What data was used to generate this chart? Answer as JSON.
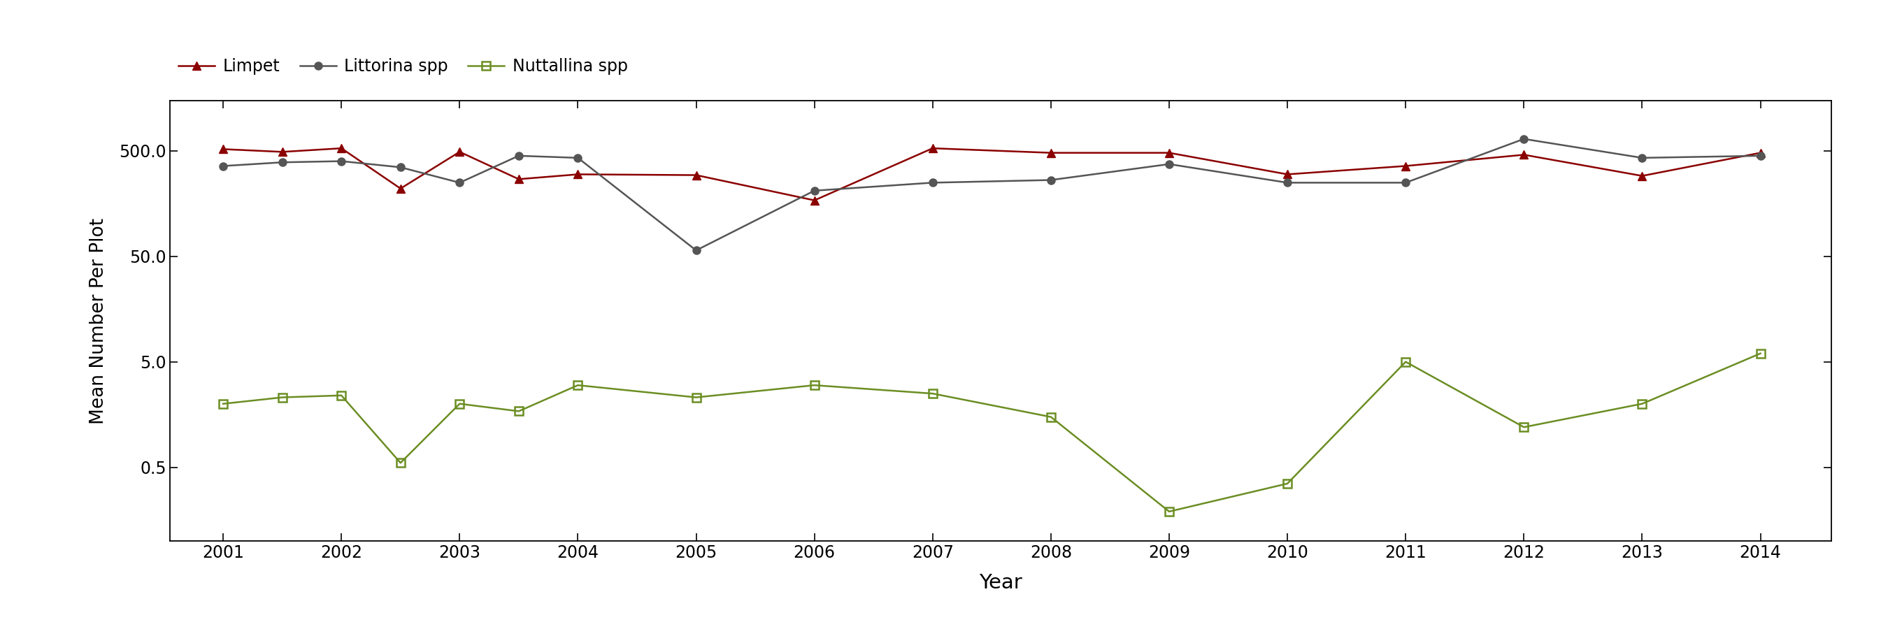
{
  "limpet_x": [
    2001,
    2001.5,
    2002,
    2002.5,
    2003,
    2003.5,
    2004,
    2005,
    2006,
    2007,
    2008,
    2009,
    2010,
    2011,
    2012,
    2013,
    2014
  ],
  "limpet_y": [
    520,
    490,
    530,
    220,
    490,
    270,
    300,
    295,
    170,
    530,
    480,
    480,
    300,
    360,
    460,
    290,
    480
  ],
  "littorina_x": [
    2001,
    2001.5,
    2002,
    2002.5,
    2003,
    2003.5,
    2004,
    2005,
    2006,
    2007,
    2008,
    2009,
    2010,
    2011,
    2012,
    2013,
    2014
  ],
  "littorina_y": [
    360,
    390,
    400,
    350,
    250,
    450,
    430,
    57,
    210,
    250,
    265,
    375,
    250,
    250,
    650,
    430,
    450
  ],
  "nuttallina_x": [
    2001,
    2001.5,
    2002,
    2002.5,
    2003,
    2003.5,
    2004,
    2005,
    2006,
    2007,
    2008,
    2009,
    2010,
    2011,
    2012,
    2013,
    2014
  ],
  "nuttallina_y": [
    2.0,
    2.3,
    2.4,
    0.55,
    2.0,
    1.7,
    3.0,
    2.3,
    3.0,
    2.5,
    1.5,
    0.19,
    0.35,
    5.0,
    1.2,
    2.0,
    6.0
  ],
  "limpet_color": "#8B0000",
  "littorina_color": "#555555",
  "nuttallina_color": "#6B8E23",
  "xlabel": "Year",
  "ylabel": "Mean Number Per Plot",
  "yticks": [
    0.5,
    5.0,
    50.0,
    500.0
  ],
  "ytick_labels": [
    "0.5",
    "5.0",
    "50.0",
    "500.0"
  ],
  "background_color": "#ffffff",
  "legend_labels": [
    "Limpet",
    "Littorina spp",
    "Nuttallina spp"
  ],
  "xticks": [
    2001,
    2002,
    2003,
    2004,
    2005,
    2006,
    2007,
    2008,
    2009,
    2010,
    2011,
    2012,
    2013,
    2014
  ]
}
